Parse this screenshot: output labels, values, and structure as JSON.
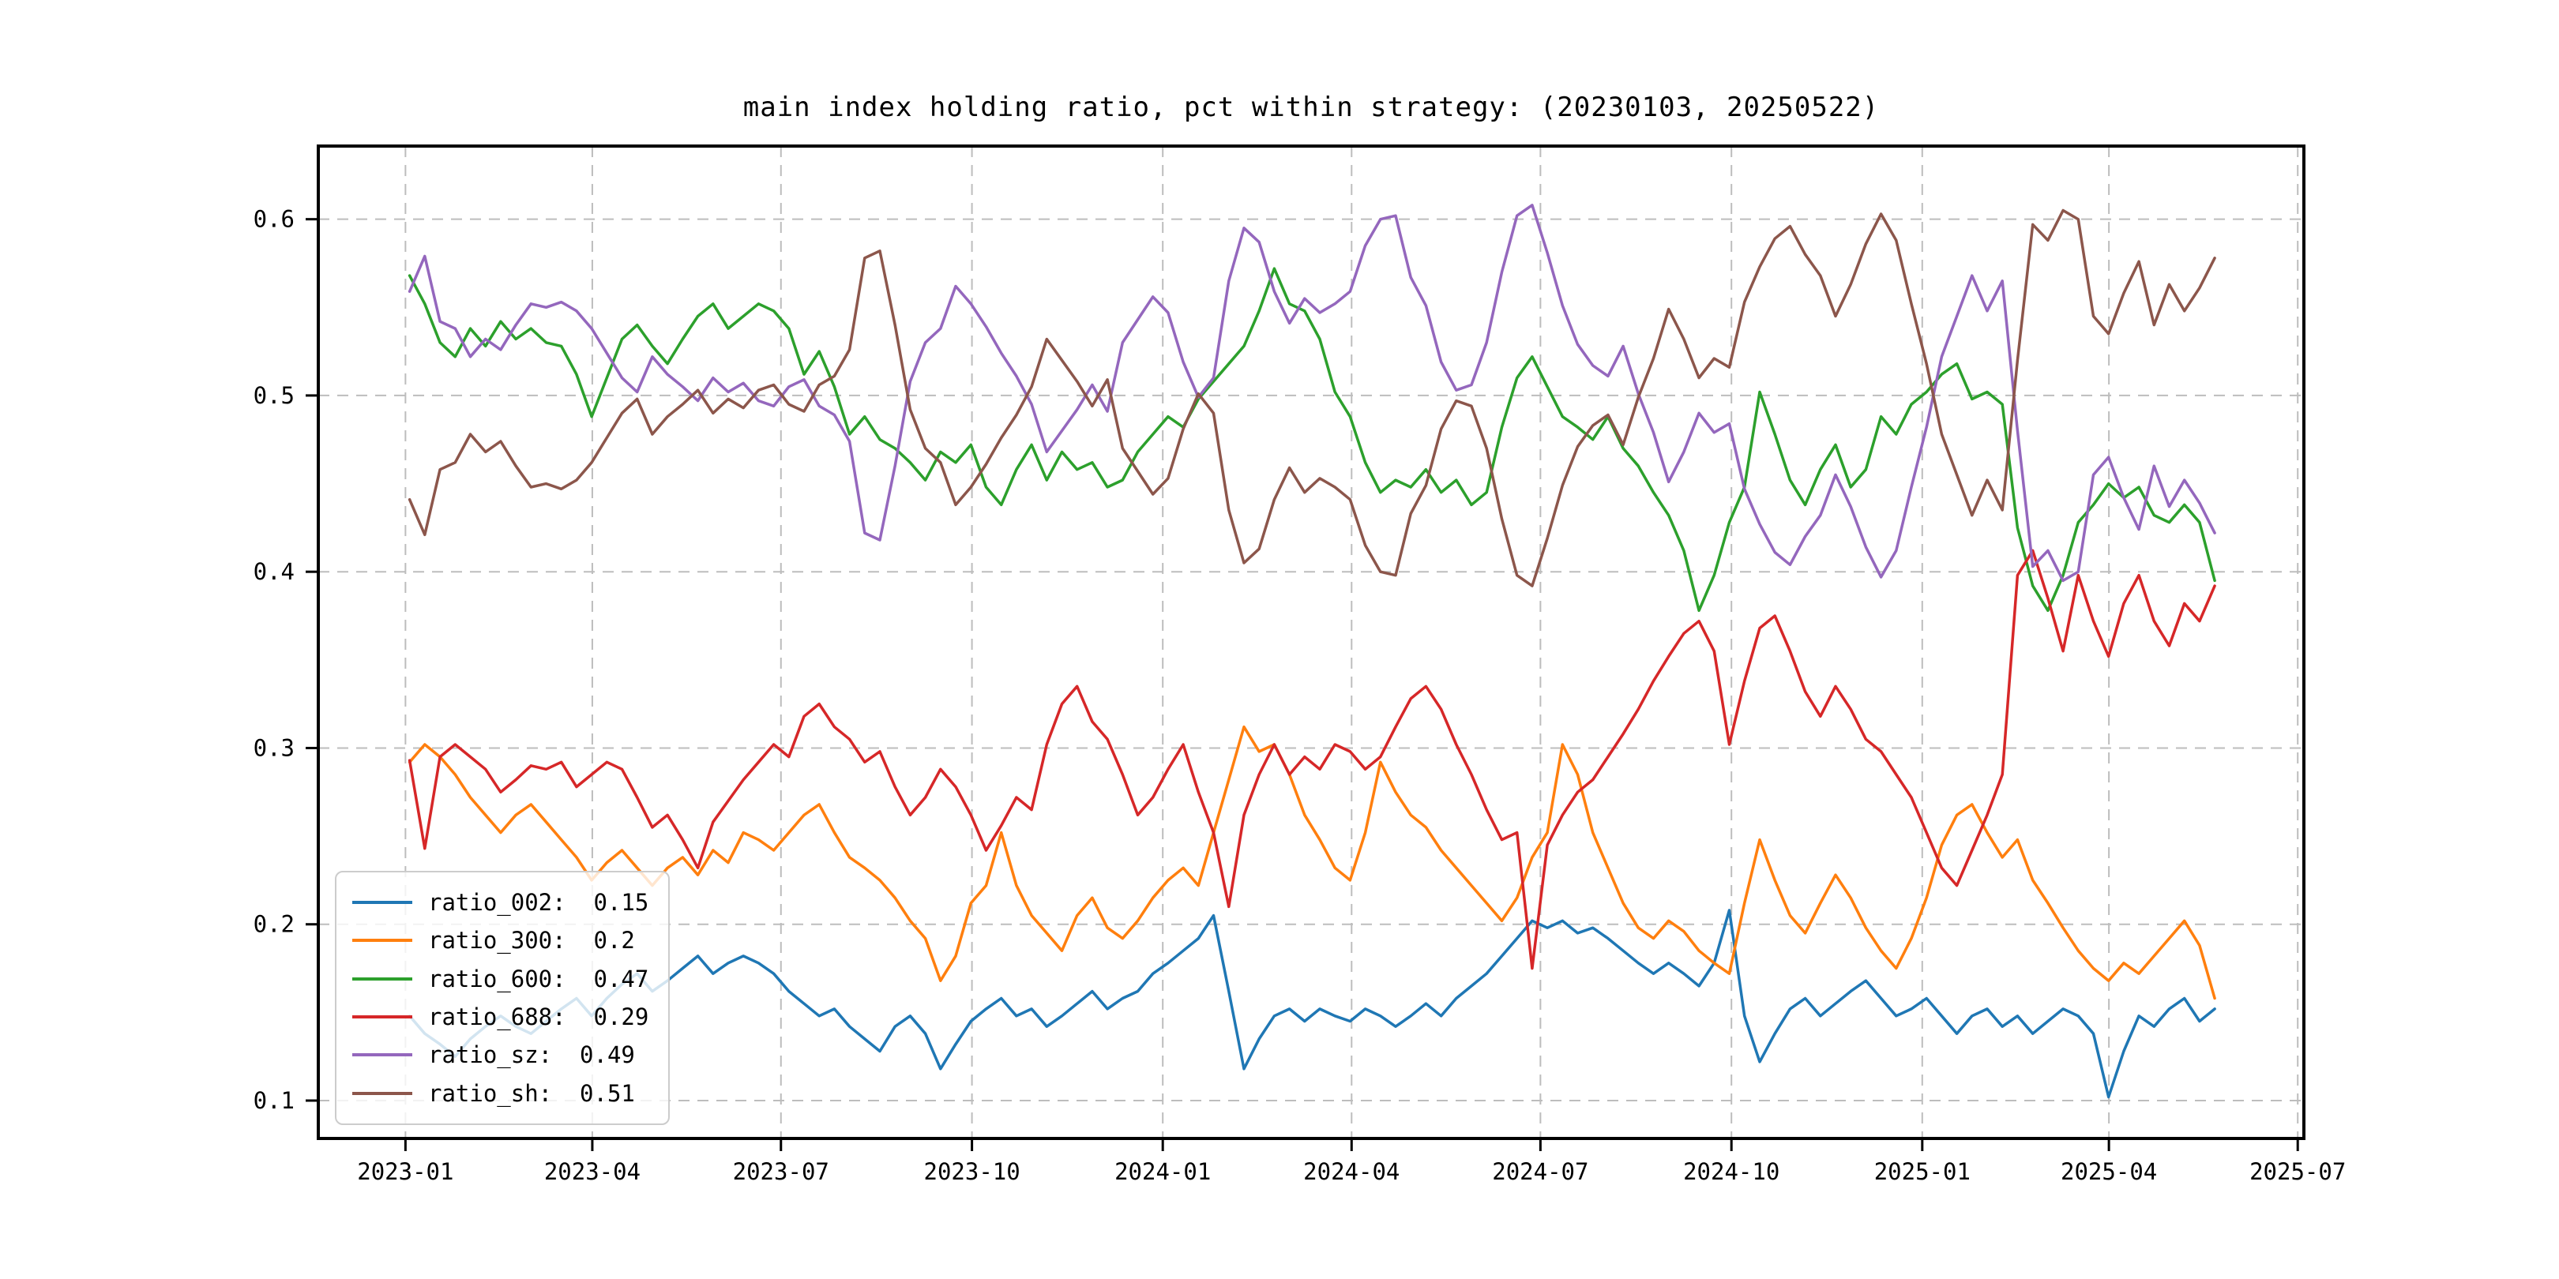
{
  "figure": {
    "background": "#ffffff"
  },
  "chart_data": {
    "type": "line",
    "title": "main index holding ratio, pct within strategy: (20230103, 20250522)",
    "xlabel": "",
    "ylabel": "",
    "grid": true,
    "ylim": [
      0.0785,
      0.6415
    ],
    "y_ticks": [
      "0.1",
      "0.2",
      "0.3",
      "0.4",
      "0.5",
      "0.6"
    ],
    "y_tick_values": [
      0.1,
      0.2,
      0.3,
      0.4,
      0.5,
      0.6
    ],
    "x_ticks": [
      {
        "label": "2023-01",
        "f": 0.0439
      },
      {
        "label": "2023-04",
        "f": 0.138
      },
      {
        "label": "2023-07",
        "f": 0.233
      },
      {
        "label": "2023-10",
        "f": 0.3292
      },
      {
        "label": "2024-01",
        "f": 0.4253
      },
      {
        "label": "2024-04",
        "f": 0.5204
      },
      {
        "label": "2024-07",
        "f": 0.6155
      },
      {
        "label": "2024-10",
        "f": 0.7117
      },
      {
        "label": "2025-01",
        "f": 0.8078
      },
      {
        "label": "2025-04",
        "f": 0.9018
      },
      {
        "label": "2025-07",
        "f": 0.9969
      }
    ],
    "data_span": {
      "start_f": 0.046,
      "end_f": 0.9551,
      "start_date": "20230103",
      "end_date": "20250522"
    },
    "legend": {
      "position": "lower-left",
      "entries": [
        {
          "text": "ratio_002:  0.15",
          "color": "#1f77b4"
        },
        {
          "text": "ratio_300:  0.2",
          "color": "#ff7f0e"
        },
        {
          "text": "ratio_600:  0.47",
          "color": "#2ca02c"
        },
        {
          "text": "ratio_688:  0.29",
          "color": "#d62728"
        },
        {
          "text": "ratio_sz:  0.49",
          "color": "#9467bd"
        },
        {
          "text": "ratio_sh:  0.51",
          "color": "#8c564b"
        }
      ]
    },
    "series": [
      {
        "name": "ratio_002",
        "color": "#1f77b4",
        "values": [
          0.148,
          0.138,
          0.132,
          0.125,
          0.135,
          0.142,
          0.148,
          0.142,
          0.138,
          0.145,
          0.152,
          0.158,
          0.148,
          0.158,
          0.166,
          0.172,
          0.162,
          0.168,
          0.175,
          0.182,
          0.172,
          0.178,
          0.182,
          0.178,
          0.172,
          0.162,
          0.155,
          0.148,
          0.152,
          0.142,
          0.135,
          0.128,
          0.142,
          0.148,
          0.138,
          0.118,
          0.132,
          0.145,
          0.152,
          0.158,
          0.148,
          0.152,
          0.142,
          0.148,
          0.155,
          0.162,
          0.152,
          0.158,
          0.162,
          0.172,
          0.178,
          0.185,
          0.192,
          0.205,
          0.162,
          0.118,
          0.135,
          0.148,
          0.152,
          0.145,
          0.152,
          0.148,
          0.145,
          0.152,
          0.148,
          0.142,
          0.148,
          0.155,
          0.148,
          0.158,
          0.165,
          0.172,
          0.182,
          0.192,
          0.202,
          0.198,
          0.202,
          0.195,
          0.198,
          0.192,
          0.185,
          0.178,
          0.172,
          0.178,
          0.172,
          0.165,
          0.178,
          0.208,
          0.148,
          0.122,
          0.138,
          0.152,
          0.158,
          0.148,
          0.155,
          0.162,
          0.168,
          0.158,
          0.148,
          0.152,
          0.158,
          0.148,
          0.138,
          0.148,
          0.152,
          0.142,
          0.148,
          0.138,
          0.145,
          0.152,
          0.148,
          0.138,
          0.102,
          0.128,
          0.148,
          0.142,
          0.152,
          0.158,
          0.145,
          0.152
        ]
      },
      {
        "name": "ratio_300",
        "color": "#ff7f0e",
        "values": [
          0.292,
          0.302,
          0.295,
          0.285,
          0.272,
          0.262,
          0.252,
          0.262,
          0.268,
          0.258,
          0.248,
          0.238,
          0.225,
          0.235,
          0.242,
          0.232,
          0.222,
          0.232,
          0.238,
          0.228,
          0.242,
          0.235,
          0.252,
          0.248,
          0.242,
          0.252,
          0.262,
          0.268,
          0.252,
          0.238,
          0.232,
          0.225,
          0.215,
          0.202,
          0.192,
          0.168,
          0.182,
          0.212,
          0.222,
          0.252,
          0.222,
          0.205,
          0.195,
          0.185,
          0.205,
          0.215,
          0.198,
          0.192,
          0.202,
          0.215,
          0.225,
          0.232,
          0.222,
          0.252,
          0.282,
          0.312,
          0.298,
          0.302,
          0.285,
          0.262,
          0.248,
          0.232,
          0.225,
          0.252,
          0.292,
          0.275,
          0.262,
          0.255,
          0.242,
          0.232,
          0.222,
          0.212,
          0.202,
          0.215,
          0.238,
          0.252,
          0.302,
          0.285,
          0.252,
          0.232,
          0.212,
          0.198,
          0.192,
          0.202,
          0.196,
          0.185,
          0.178,
          0.172,
          0.212,
          0.248,
          0.225,
          0.205,
          0.195,
          0.212,
          0.228,
          0.215,
          0.198,
          0.185,
          0.175,
          0.192,
          0.215,
          0.245,
          0.262,
          0.268,
          0.252,
          0.238,
          0.248,
          0.225,
          0.212,
          0.198,
          0.185,
          0.175,
          0.168,
          0.178,
          0.172,
          0.182,
          0.192,
          0.202,
          0.188,
          0.158
        ]
      },
      {
        "name": "ratio_600",
        "color": "#2ca02c",
        "values": [
          0.568,
          0.552,
          0.53,
          0.522,
          0.538,
          0.528,
          0.542,
          0.532,
          0.538,
          0.53,
          0.528,
          0.512,
          0.488,
          0.51,
          0.532,
          0.54,
          0.528,
          0.518,
          0.532,
          0.545,
          0.552,
          0.538,
          0.545,
          0.552,
          0.548,
          0.538,
          0.512,
          0.525,
          0.505,
          0.478,
          0.488,
          0.475,
          0.47,
          0.462,
          0.452,
          0.468,
          0.462,
          0.472,
          0.448,
          0.438,
          0.458,
          0.472,
          0.452,
          0.468,
          0.458,
          0.462,
          0.448,
          0.452,
          0.468,
          0.478,
          0.488,
          0.482,
          0.498,
          0.508,
          0.518,
          0.528,
          0.548,
          0.572,
          0.552,
          0.548,
          0.532,
          0.502,
          0.488,
          0.462,
          0.445,
          0.452,
          0.448,
          0.458,
          0.445,
          0.452,
          0.438,
          0.445,
          0.482,
          0.51,
          0.522,
          0.505,
          0.488,
          0.482,
          0.475,
          0.488,
          0.47,
          0.46,
          0.445,
          0.432,
          0.412,
          0.378,
          0.398,
          0.428,
          0.448,
          0.502,
          0.478,
          0.452,
          0.438,
          0.458,
          0.472,
          0.448,
          0.458,
          0.488,
          0.478,
          0.495,
          0.502,
          0.512,
          0.518,
          0.498,
          0.502,
          0.495,
          0.425,
          0.392,
          0.378,
          0.398,
          0.428,
          0.438,
          0.45,
          0.442,
          0.448,
          0.432,
          0.428,
          0.438,
          0.428,
          0.395
        ]
      },
      {
        "name": "ratio_688",
        "color": "#d62728",
        "values": [
          0.293,
          0.243,
          0.295,
          0.302,
          0.295,
          0.288,
          0.275,
          0.282,
          0.29,
          0.288,
          0.292,
          0.278,
          0.285,
          0.292,
          0.288,
          0.272,
          0.255,
          0.262,
          0.248,
          0.232,
          0.258,
          0.27,
          0.282,
          0.292,
          0.302,
          0.295,
          0.318,
          0.325,
          0.312,
          0.305,
          0.292,
          0.298,
          0.278,
          0.262,
          0.272,
          0.288,
          0.278,
          0.262,
          0.242,
          0.256,
          0.272,
          0.265,
          0.302,
          0.325,
          0.335,
          0.315,
          0.305,
          0.285,
          0.262,
          0.272,
          0.288,
          0.302,
          0.275,
          0.252,
          0.21,
          0.262,
          0.285,
          0.302,
          0.285,
          0.295,
          0.288,
          0.302,
          0.298,
          0.288,
          0.295,
          0.312,
          0.328,
          0.335,
          0.322,
          0.302,
          0.285,
          0.265,
          0.248,
          0.252,
          0.175,
          0.245,
          0.262,
          0.275,
          0.282,
          0.295,
          0.308,
          0.322,
          0.338,
          0.352,
          0.365,
          0.372,
          0.355,
          0.302,
          0.338,
          0.368,
          0.375,
          0.355,
          0.332,
          0.318,
          0.335,
          0.322,
          0.305,
          0.298,
          0.285,
          0.272,
          0.252,
          0.232,
          0.222,
          0.242,
          0.262,
          0.285,
          0.398,
          0.412,
          0.385,
          0.355,
          0.398,
          0.372,
          0.352,
          0.382,
          0.398,
          0.372,
          0.358,
          0.382,
          0.372,
          0.392
        ]
      },
      {
        "name": "ratio_sz",
        "color": "#9467bd",
        "values": [
          0.559,
          0.579,
          0.542,
          0.538,
          0.522,
          0.532,
          0.526,
          0.54,
          0.552,
          0.55,
          0.553,
          0.548,
          0.538,
          0.524,
          0.51,
          0.502,
          0.522,
          0.512,
          0.505,
          0.497,
          0.51,
          0.502,
          0.507,
          0.497,
          0.494,
          0.505,
          0.509,
          0.494,
          0.489,
          0.474,
          0.422,
          0.418,
          0.46,
          0.508,
          0.53,
          0.538,
          0.562,
          0.552,
          0.539,
          0.524,
          0.511,
          0.495,
          0.468,
          0.48,
          0.492,
          0.506,
          0.491,
          0.53,
          0.543,
          0.556,
          0.547,
          0.519,
          0.499,
          0.51,
          0.565,
          0.595,
          0.587,
          0.559,
          0.541,
          0.555,
          0.547,
          0.552,
          0.559,
          0.585,
          0.6,
          0.602,
          0.567,
          0.551,
          0.519,
          0.503,
          0.506,
          0.53,
          0.57,
          0.602,
          0.608,
          0.581,
          0.551,
          0.529,
          0.517,
          0.511,
          0.528,
          0.501,
          0.479,
          0.451,
          0.468,
          0.49,
          0.479,
          0.484,
          0.447,
          0.427,
          0.411,
          0.404,
          0.42,
          0.432,
          0.455,
          0.437,
          0.414,
          0.397,
          0.412,
          0.448,
          0.482,
          0.522,
          0.545,
          0.568,
          0.548,
          0.565,
          0.48,
          0.403,
          0.412,
          0.395,
          0.4,
          0.455,
          0.465,
          0.442,
          0.424,
          0.46,
          0.437,
          0.452,
          0.439,
          0.422
        ]
      },
      {
        "name": "ratio_sh",
        "color": "#8c564b",
        "values": [
          0.441,
          0.421,
          0.458,
          0.462,
          0.478,
          0.468,
          0.474,
          0.46,
          0.448,
          0.45,
          0.447,
          0.452,
          0.462,
          0.476,
          0.49,
          0.498,
          0.478,
          0.488,
          0.495,
          0.503,
          0.49,
          0.498,
          0.493,
          0.503,
          0.506,
          0.495,
          0.491,
          0.506,
          0.511,
          0.526,
          0.578,
          0.582,
          0.54,
          0.492,
          0.47,
          0.462,
          0.438,
          0.448,
          0.461,
          0.476,
          0.489,
          0.505,
          0.532,
          0.52,
          0.508,
          0.494,
          0.509,
          0.47,
          0.457,
          0.444,
          0.453,
          0.481,
          0.501,
          0.49,
          0.435,
          0.405,
          0.413,
          0.441,
          0.459,
          0.445,
          0.453,
          0.448,
          0.441,
          0.415,
          0.4,
          0.398,
          0.433,
          0.449,
          0.481,
          0.497,
          0.494,
          0.47,
          0.43,
          0.398,
          0.392,
          0.419,
          0.449,
          0.471,
          0.483,
          0.489,
          0.472,
          0.499,
          0.521,
          0.549,
          0.532,
          0.51,
          0.521,
          0.516,
          0.553,
          0.573,
          0.589,
          0.596,
          0.58,
          0.568,
          0.545,
          0.563,
          0.586,
          0.603,
          0.588,
          0.552,
          0.518,
          0.478,
          0.455,
          0.432,
          0.452,
          0.435,
          0.52,
          0.597,
          0.588,
          0.605,
          0.6,
          0.545,
          0.535,
          0.558,
          0.576,
          0.54,
          0.563,
          0.548,
          0.561,
          0.578
        ]
      }
    ]
  }
}
